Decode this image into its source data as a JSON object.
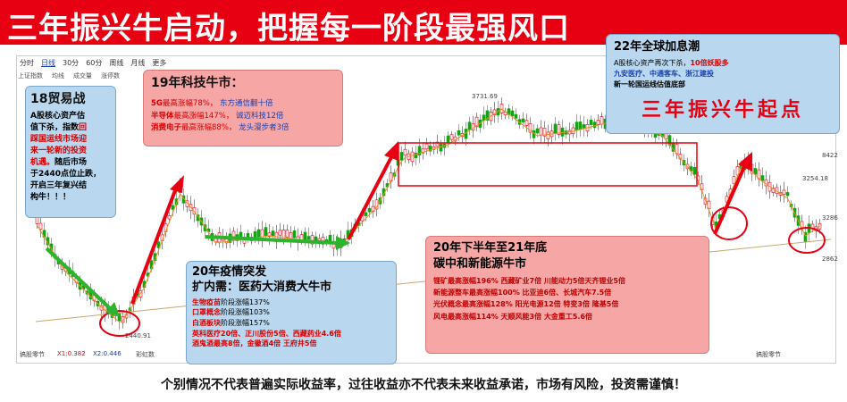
{
  "banner": {
    "title": "三年振兴牛启动，把握每一阶段最强风口"
  },
  "toolbar": {
    "tabs": [
      "分时",
      "日线",
      "30分",
      "60分",
      "周线",
      "月线",
      "更多"
    ],
    "sub": [
      "上证指数",
      "均线",
      "成交量",
      "涨停数"
    ]
  },
  "footer": {
    "disclaimer": "个别情况不代表普遍实际收益率，过往收益亦不代表未来收益承诺，市场有风险，投资需谨慎！"
  },
  "right_axis": [
    "8422",
    "3286",
    "2862"
  ],
  "price_labels": {
    "peak": "3731.69",
    "low": "2440.91",
    "right": "3254.18"
  },
  "bottom_bar": {
    "left": "搞股零节",
    "x1": "X1:0.382",
    "x2": "X2:0.446",
    "brand": "彩虹数",
    "right": "搞股零节"
  },
  "box_trade": {
    "title": "18贸易战",
    "lines": [
      "A股核心资产估",
      "值下杀，",
      "指数",
      "回",
      "踩国运线市场迎",
      "来一轮新的投资",
      "机遇。",
      "随后市场",
      "于2440点位止跌，",
      "开启三年复兴结",
      "构牛！！！"
    ]
  },
  "box_tech": {
    "title": "19年科技牛市：",
    "rows": [
      {
        "a": "5G",
        "b": "最高涨幅78%，",
        "c": "东方通信翻十倍"
      },
      {
        "a": "半导体",
        "b": "最高涨幅147%，",
        "c": "诚迈科技12倍"
      },
      {
        "a": "消费电子",
        "b": "最高涨幅88%，",
        "c": "龙头漫步者3倍"
      }
    ]
  },
  "box_covid": {
    "title1": "20年疫情突发",
    "title2": "扩内需：医药大消费大牛市",
    "rows": [
      {
        "a": "生物疫苗",
        "b": "阶段涨幅137%"
      },
      {
        "a": "口罩概念",
        "b": "阶段涨幅103%"
      },
      {
        "a": "白酒板块",
        "b": "阶段涨幅157%"
      }
    ],
    "line4": "英科医疗20倍、正川股份5倍、西藏药业4.6倍",
    "line5": "酒鬼酒最高8倍，金徽酒4倍 王府井5倍"
  },
  "box_carbon": {
    "title1": "20年下半年至21年底",
    "title2": "碳中和新能源牛市",
    "rows": [
      "锂矿最高涨幅196% 西藏矿业7倍 川能动力5倍天齐锂业5倍",
      "新能源整车最高涨幅100% 比亚迪6倍、长城汽车7.5倍",
      "光伏概念最高涨幅128% 阳光电源12倍 特变3倍 隆基5倍",
      "风电最高涨幅114% 天顺风能3倍 大金重工5.6倍"
    ]
  },
  "box_2022": {
    "title": "22年全球加息潮",
    "line1a": "A股核心资产再次下杀，",
    "line1b": "10倍妖股多",
    "line2": "九安医疗、中通客车、浙江建投",
    "line3": "新一轮国运线估值底部",
    "big": "三年振兴牛起点"
  },
  "chart_data": {
    "type": "candlestick",
    "series_name": "上证指数",
    "key_points": [
      {
        "label": "2440.91",
        "value": 2440.91
      },
      {
        "label": "3731.69",
        "value": 3731.69
      }
    ]
  }
}
